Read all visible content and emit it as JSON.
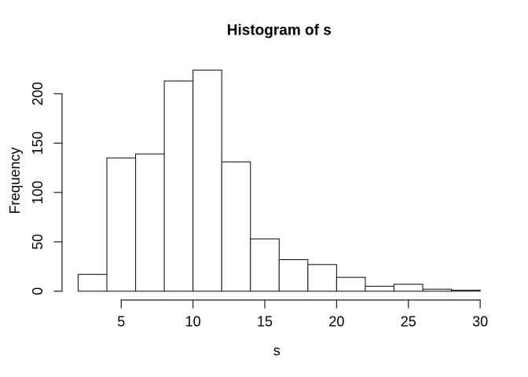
{
  "chart_data": {
    "type": "bar",
    "subtype": "histogram",
    "title": "Histogram of s",
    "xlabel": "s",
    "ylabel": "Frequency",
    "bin_edges": [
      2,
      4,
      6,
      8,
      10,
      12,
      14,
      16,
      18,
      20,
      22,
      24,
      26,
      28,
      30
    ],
    "counts": [
      17,
      135,
      139,
      213,
      224,
      131,
      53,
      32,
      27,
      14,
      5,
      7,
      2,
      1
    ],
    "x_ticks": [
      5,
      10,
      15,
      20,
      25,
      30
    ],
    "y_ticks": [
      0,
      50,
      100,
      150,
      200
    ],
    "xlim": [
      2,
      30
    ],
    "ylim": [
      0,
      224
    ],
    "grid": false,
    "legend": "none",
    "bar_fill": "#ffffff",
    "bar_stroke": "#1a1a1a",
    "axis_color": "#1a1a1a",
    "text_color": "#000000",
    "background": "#ffffff"
  }
}
